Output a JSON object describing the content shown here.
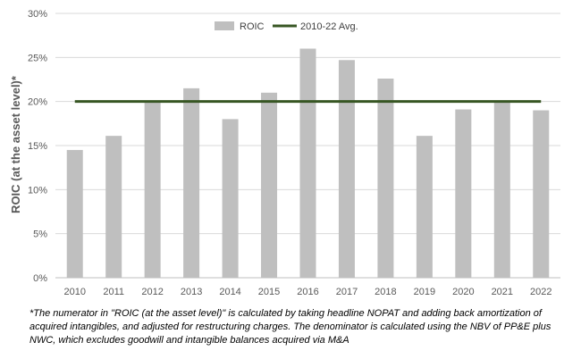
{
  "chart_data": {
    "type": "bar",
    "ylabel": "ROIC (at the asset level)*",
    "xlabel": "",
    "title": "",
    "ylim": [
      0,
      30
    ],
    "y_ticks": [
      "0%",
      "5%",
      "10%",
      "15%",
      "20%",
      "25%",
      "30%"
    ],
    "y_tick_values": [
      0,
      5,
      10,
      15,
      20,
      25,
      30
    ],
    "grid": true,
    "legend_position": "top-center",
    "categories": [
      "2010",
      "2011",
      "2012",
      "2013",
      "2014",
      "2015",
      "2016",
      "2017",
      "2018",
      "2019",
      "2020",
      "2021",
      "2022"
    ],
    "series": [
      {
        "name": "ROIC",
        "kind": "bar",
        "color": "#bfbfbf",
        "values": [
          14.5,
          16.1,
          19.9,
          21.5,
          18.0,
          21.0,
          26.0,
          24.7,
          22.6,
          16.1,
          19.1,
          20.0,
          19.0
        ]
      },
      {
        "name": "2010-22 Avg.",
        "kind": "line",
        "color": "#375623",
        "value": 20.0
      }
    ]
  },
  "footnote": "*The numerator in \"ROIC (at the asset level)\" is calculated by taking headline NOPAT and adding back amortization of acquired intangibles, and adjusted for restructuring charges. The denominator is calculated using the NBV of PP&E plus NWC, which excludes goodwill and intangible balances acquired via M&A"
}
